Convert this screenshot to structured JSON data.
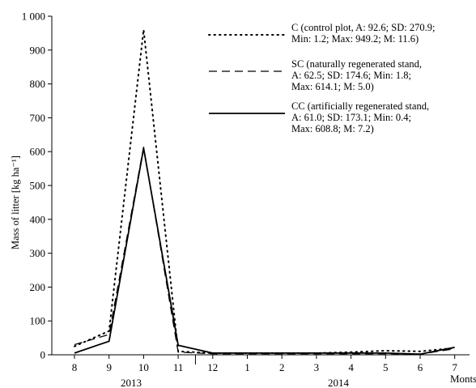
{
  "chart_data": {
    "type": "line",
    "title": "",
    "xlabel": "Monts",
    "ylabel": "Mass of litter [kg ha⁻¹]",
    "x_ticks": [
      "8",
      "9",
      "10",
      "11",
      "12",
      "1",
      "2",
      "3",
      "4",
      "5",
      "6",
      "7"
    ],
    "year_labels": [
      "2013",
      "2014"
    ],
    "ylim": [
      0,
      1000
    ],
    "y_ticks": [
      0,
      100,
      200,
      300,
      400,
      500,
      600,
      700,
      800,
      900,
      1000
    ],
    "y_tick_labels": [
      "0",
      "100",
      "200",
      "300",
      "400",
      "500",
      "600",
      "700",
      "800",
      "900",
      "1 000"
    ],
    "legend_position": "top-right",
    "series": [
      {
        "style": "dotted",
        "legend_lines": [
          "C (control plot, A: 92.6; SD: 270.9;",
          "Min: 1.2; Max: 949.2; M: 11.6)"
        ],
        "values": [
          25,
          70,
          960,
          10,
          5,
          5,
          5,
          5,
          8,
          12,
          10,
          20
        ]
      },
      {
        "style": "dashed",
        "legend_lines": [
          "SC (naturally regenerated stand,",
          "A: 62.5; SD: 174.6; Min: 1.8;",
          "Max: 614.1; M: 5.0)"
        ],
        "values": [
          30,
          60,
          614,
          8,
          3,
          3,
          3,
          3,
          3,
          3,
          2,
          18
        ]
      },
      {
        "style": "solid",
        "legend_lines": [
          "CC (artificially regenerated stand,",
          "A: 61.0; SD: 173.1; Min: 0.4;",
          "Max: 608.8; M: 7.2)"
        ],
        "values": [
          5,
          40,
          610,
          28,
          5,
          5,
          5,
          5,
          5,
          5,
          2,
          22
        ]
      }
    ]
  }
}
